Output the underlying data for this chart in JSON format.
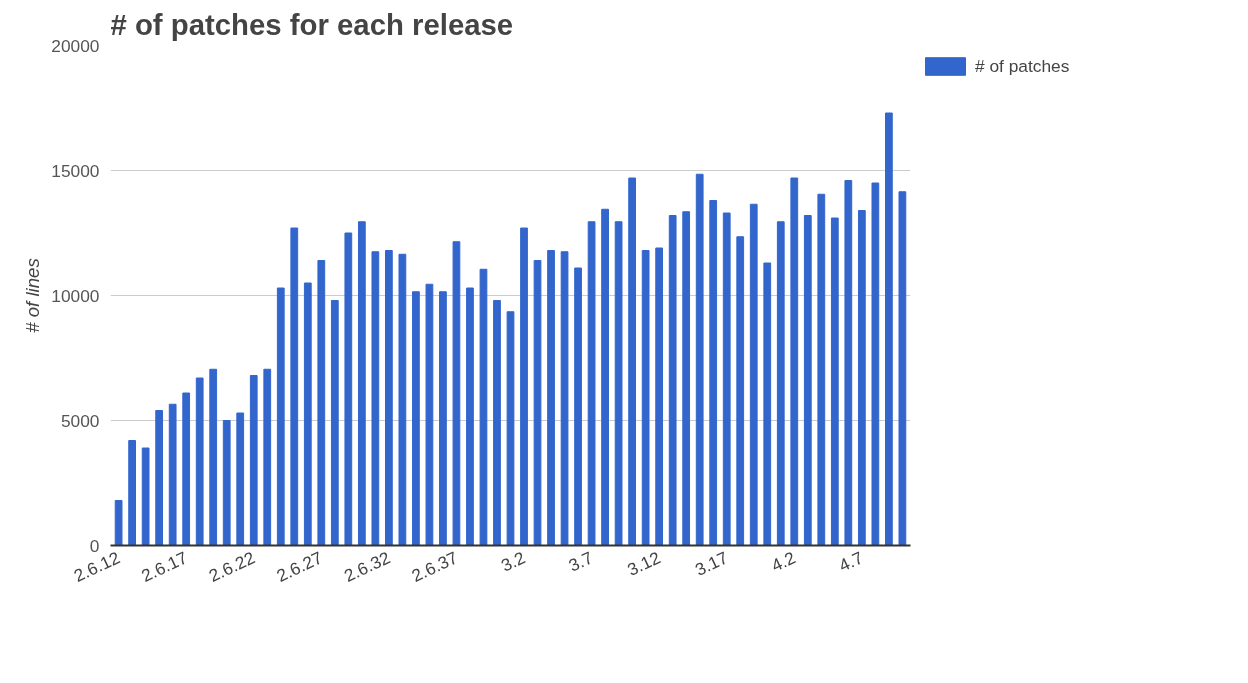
{
  "chart_data": {
    "type": "bar",
    "title": "# of patches for each release",
    "ylabel": "# of lines",
    "categories": [
      "2.6.12",
      null,
      null,
      null,
      null,
      "2.6.17",
      null,
      null,
      null,
      null,
      "2.6.22",
      null,
      null,
      null,
      null,
      "2.6.27",
      null,
      null,
      null,
      null,
      "2.6.32",
      null,
      null,
      null,
      null,
      "2.6.37",
      null,
      null,
      null,
      null,
      "3.2",
      null,
      null,
      null,
      null,
      "3.7",
      null,
      null,
      null,
      null,
      "3.12",
      null,
      null,
      null,
      null,
      "3.17",
      null,
      null,
      null,
      null,
      "4.2",
      null,
      null,
      null,
      null,
      "4.7",
      null,
      null,
      null
    ],
    "series": [
      {
        "name": "# of patches",
        "color": "#3366cc",
        "values": [
          1800,
          4200,
          3900,
          5400,
          5650,
          6100,
          6700,
          7050,
          5000,
          5300,
          6800,
          7050,
          10300,
          12700,
          10500,
          11400,
          9800,
          12500,
          12950,
          11750,
          11800,
          11650,
          10150,
          10450,
          10150,
          12150,
          10300,
          11050,
          9800,
          9350,
          12700,
          11400,
          11800,
          11750,
          11100,
          12950,
          13450,
          12950,
          14700,
          11800,
          11900,
          13200,
          13350,
          14850,
          13800,
          13300,
          12350,
          13650,
          11300,
          12950,
          14700,
          13200,
          14050,
          13100,
          14600,
          13400,
          14500,
          17300,
          14150
        ]
      }
    ],
    "ylim": [
      0,
      20000
    ],
    "yticks": [
      0,
      5000,
      10000,
      15000,
      20000
    ],
    "grid": "y",
    "legend": "top right"
  }
}
